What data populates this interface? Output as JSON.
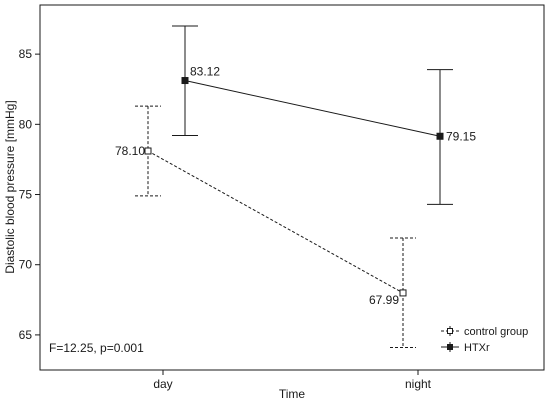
{
  "chart_data": {
    "type": "line",
    "xlabel": "Time",
    "ylabel": "Diastolic blood pressure [mmHg]",
    "categories": [
      "day",
      "night"
    ],
    "ylim": [
      62.5,
      88.5
    ],
    "yticks": [
      65,
      70,
      75,
      80,
      85
    ],
    "grid": false,
    "legend_position": "bottom-right",
    "annotation": "F=12.25, p=0.001",
    "series": [
      {
        "name": "control group",
        "style": "dashed",
        "marker": "open-square",
        "color": "#1a1a1a",
        "values": [
          78.1,
          67.99
        ],
        "labels": [
          "78.10",
          "67.99"
        ],
        "err_low": [
          74.9,
          64.1
        ],
        "err_high": [
          81.3,
          71.9
        ]
      },
      {
        "name": "HTXr",
        "style": "solid",
        "marker": "filled-square",
        "color": "#1a1a1a",
        "values": [
          83.12,
          79.15
        ],
        "labels": [
          "83.12",
          "79.15"
        ],
        "err_low": [
          79.2,
          74.3
        ],
        "err_high": [
          87.0,
          83.9
        ]
      }
    ]
  }
}
